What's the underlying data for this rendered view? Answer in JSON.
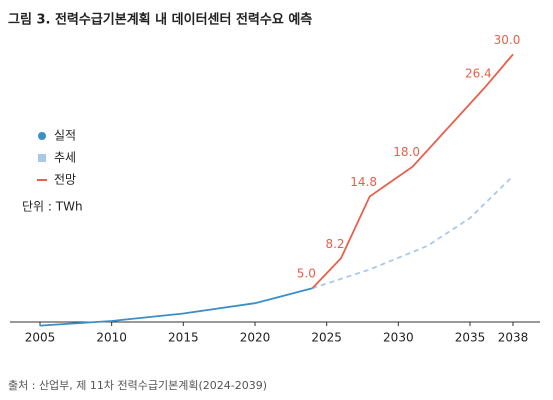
{
  "chart_data": {
    "type": "line",
    "title": "그림 3. 전력수급기본계획 내 데이터센터 전력수요 예측",
    "unit": "단위 : TWh",
    "source": "출처 : 산업부, 제 11차 전력수급기본계획(2024-2039)",
    "xlim": [
      2005,
      2038
    ],
    "xticks": [
      2005,
      2010,
      2015,
      2020,
      2025,
      2030,
      2035,
      2038
    ],
    "ylim": [
      0,
      31
    ],
    "series": [
      {
        "name": "실적",
        "color": "#3a8fc7",
        "dash": false,
        "x": [
          2005,
          2010,
          2015,
          2020,
          2024
        ],
        "values": [
          1.0,
          1.5,
          2.3,
          3.4,
          5.0
        ]
      },
      {
        "name": "추세",
        "color": "#a9c9e8",
        "dash": true,
        "x": [
          2024,
          2028,
          2032,
          2035,
          2038
        ],
        "values": [
          5.0,
          7.0,
          9.5,
          12.5,
          17.0
        ]
      },
      {
        "name": "전망",
        "color": "#e8604c",
        "dash": false,
        "x": [
          2024,
          2026,
          2028,
          2031,
          2036,
          2038
        ],
        "values": [
          5.0,
          8.2,
          14.8,
          18.0,
          26.4,
          30.0
        ],
        "value_labels": [
          "5.0",
          "8.2",
          "14.8",
          "18.0",
          "26.4",
          "30.0"
        ]
      }
    ]
  }
}
